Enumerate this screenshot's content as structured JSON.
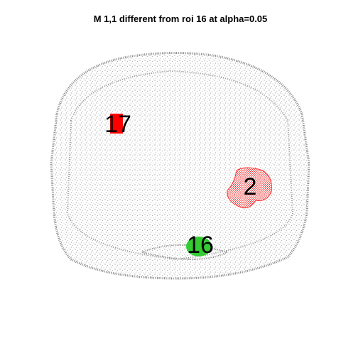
{
  "title": "M 1,1 different from roi 16 at alpha=0.05",
  "rois": [
    {
      "label": "17",
      "color": "#ff0000"
    },
    {
      "label": "2",
      "color": "#ff3333"
    },
    {
      "label": "16",
      "color": "#33cc33"
    }
  ]
}
